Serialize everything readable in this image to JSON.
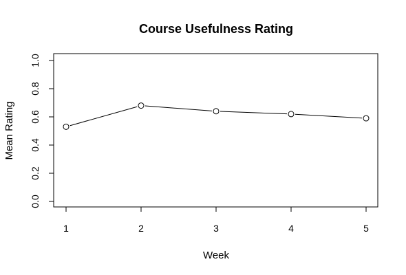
{
  "chart_data": {
    "type": "line",
    "title": "Course Usefulness Rating",
    "xlabel": "Week",
    "ylabel": "Mean Rating",
    "x": [
      1,
      2,
      3,
      4,
      5
    ],
    "y": [
      0.53,
      0.68,
      0.64,
      0.62,
      0.59
    ],
    "xlim": [
      1,
      5
    ],
    "ylim": [
      0,
      1
    ],
    "x_ticks": [
      "1",
      "2",
      "3",
      "4",
      "5"
    ],
    "y_ticks": [
      "0.0",
      "0.2",
      "0.4",
      "0.6",
      "0.8",
      "1.0"
    ],
    "markers": "open-circle",
    "grid": false,
    "legend": false
  }
}
